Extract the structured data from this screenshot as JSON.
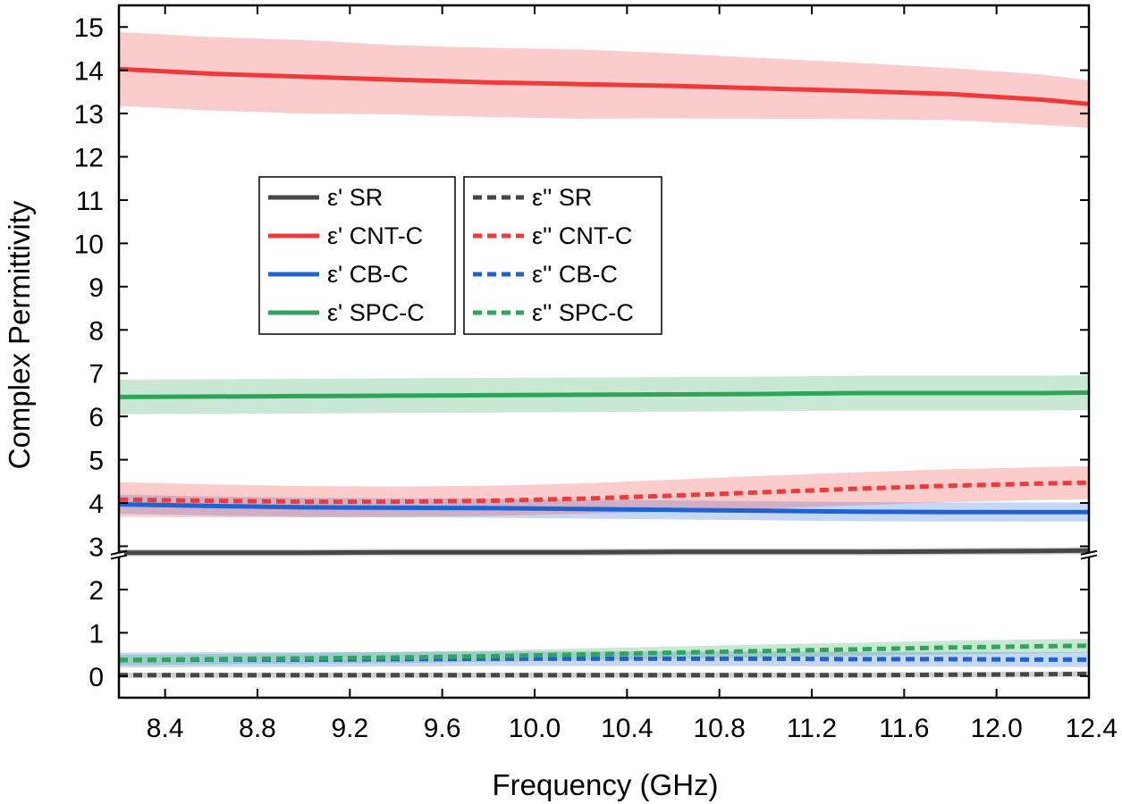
{
  "chart_data": {
    "type": "line",
    "title": "",
    "xlabel": "Frequency (GHz)",
    "ylabel": "Complex Permittivity",
    "xlim": [
      8.2,
      12.4
    ],
    "ylim": [
      -0.5,
      15.5
    ],
    "y_axis_break": {
      "from": 2.75,
      "to": 2.85
    },
    "x_ticks": [
      "8.4",
      "8.8",
      "9.2",
      "9.6",
      "10.0",
      "10.4",
      "10.8",
      "11.2",
      "11.6",
      "12.0",
      "12.4"
    ],
    "y_ticks": [
      "0",
      "1",
      "2",
      "3",
      "4",
      "5",
      "6",
      "7",
      "8",
      "9",
      "10",
      "11",
      "12",
      "13",
      "14",
      "15"
    ],
    "x": [
      8.2,
      8.6,
      9.0,
      9.4,
      9.8,
      10.2,
      10.6,
      11.0,
      11.4,
      11.8,
      12.2,
      12.4
    ],
    "series": [
      {
        "name": "ε' SR",
        "group": "real",
        "style": "solid",
        "color": "#474747",
        "values": [
          2.85,
          2.85,
          2.85,
          2.86,
          2.86,
          2.86,
          2.87,
          2.87,
          2.87,
          2.88,
          2.89,
          2.9
        ],
        "band": [
          0.08,
          0.08,
          0.08,
          0.08,
          0.08,
          0.08,
          0.08,
          0.08,
          0.08,
          0.08,
          0.08,
          0.08
        ]
      },
      {
        "name": "ε' CNT-C",
        "group": "real",
        "style": "solid",
        "color": "#f03a3a",
        "values": [
          14.03,
          13.92,
          13.85,
          13.78,
          13.72,
          13.68,
          13.64,
          13.58,
          13.52,
          13.45,
          13.32,
          13.22
        ],
        "band": [
          0.85,
          0.85,
          0.85,
          0.8,
          0.8,
          0.8,
          0.75,
          0.7,
          0.65,
          0.6,
          0.58,
          0.55
        ]
      },
      {
        "name": "ε' CB-C",
        "group": "real",
        "style": "solid",
        "color": "#1f63d2",
        "values": [
          3.97,
          3.93,
          3.9,
          3.89,
          3.88,
          3.86,
          3.84,
          3.82,
          3.8,
          3.79,
          3.79,
          3.79
        ],
        "band": [
          0.22,
          0.22,
          0.22,
          0.22,
          0.22,
          0.22,
          0.22,
          0.22,
          0.22,
          0.22,
          0.22,
          0.22
        ]
      },
      {
        "name": "ε' SPC-C",
        "group": "real",
        "style": "solid",
        "color": "#2ea65a",
        "values": [
          6.45,
          6.46,
          6.47,
          6.48,
          6.49,
          6.5,
          6.51,
          6.52,
          6.54,
          6.54,
          6.54,
          6.55
        ],
        "band": [
          0.4,
          0.4,
          0.4,
          0.4,
          0.4,
          0.4,
          0.4,
          0.4,
          0.4,
          0.4,
          0.4,
          0.4
        ]
      },
      {
        "name": "ε'' SR",
        "group": "imag",
        "style": "dashed",
        "color": "#474747",
        "values": [
          0.02,
          0.02,
          0.02,
          0.02,
          0.02,
          0.02,
          0.02,
          0.02,
          0.02,
          0.03,
          0.04,
          0.05
        ],
        "band": [
          0.06,
          0.06,
          0.06,
          0.06,
          0.06,
          0.06,
          0.06,
          0.06,
          0.06,
          0.06,
          0.06,
          0.06
        ]
      },
      {
        "name": "ε'' CNT-C",
        "group": "imag",
        "style": "dashed",
        "color": "#f03a3a",
        "values": [
          4.08,
          4.05,
          4.03,
          4.03,
          4.05,
          4.1,
          4.17,
          4.25,
          4.33,
          4.4,
          4.45,
          4.47
        ],
        "band": [
          0.4,
          0.38,
          0.36,
          0.35,
          0.35,
          0.35,
          0.37,
          0.38,
          0.38,
          0.38,
          0.38,
          0.38
        ]
      },
      {
        "name": "ε'' CB-C",
        "group": "imag",
        "style": "dashed",
        "color": "#1f63d2",
        "values": [
          0.37,
          0.38,
          0.38,
          0.39,
          0.4,
          0.4,
          0.4,
          0.4,
          0.39,
          0.39,
          0.38,
          0.38
        ],
        "band": [
          0.17,
          0.17,
          0.17,
          0.17,
          0.17,
          0.17,
          0.17,
          0.17,
          0.17,
          0.17,
          0.17,
          0.17
        ]
      },
      {
        "name": "ε'' SPC-C",
        "group": "imag",
        "style": "dashed",
        "color": "#2ea65a",
        "values": [
          0.37,
          0.39,
          0.41,
          0.43,
          0.46,
          0.5,
          0.54,
          0.58,
          0.62,
          0.66,
          0.69,
          0.7
        ],
        "band": [
          0.12,
          0.12,
          0.12,
          0.13,
          0.13,
          0.14,
          0.14,
          0.15,
          0.15,
          0.16,
          0.16,
          0.16
        ]
      }
    ],
    "legend": [
      {
        "position": "center-left",
        "entries": [
          "ε' SR",
          "ε' CNT-C",
          "ε' CB-C",
          "ε' SPC-C"
        ]
      },
      {
        "position": "center",
        "entries": [
          "ε'' SR",
          "ε'' CNT-C",
          "ε'' CB-C",
          "ε'' SPC-C"
        ]
      }
    ],
    "grid": false
  }
}
